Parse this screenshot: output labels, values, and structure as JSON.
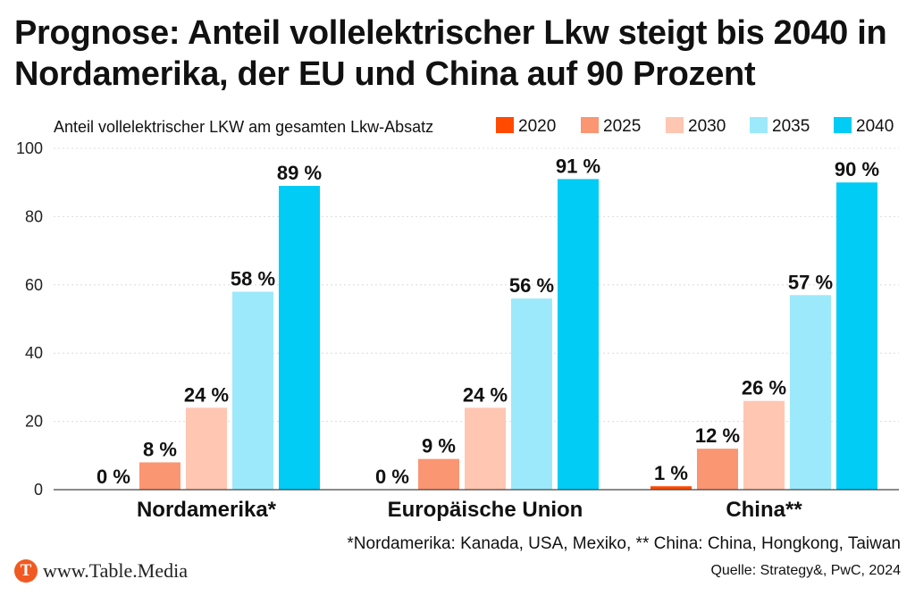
{
  "title": "Prognose: Anteil vollelektrischer Lkw steigt bis 2040 in Nordamerika, der EU und China auf 90 Prozent",
  "colors": {
    "2020": "#ff4a00",
    "2025": "#fa9672",
    "2030": "#ffc6b2",
    "2035": "#9ce9fb",
    "2040": "#00ccf5"
  },
  "chart_data": {
    "type": "bar",
    "subtitle": "Anteil vollelektrischer LKW am gesamten Lkw-Absatz",
    "categories": [
      "Nordamerika*",
      "Europäische Union",
      "China**"
    ],
    "series": [
      {
        "name": "2020",
        "values": [
          0,
          0,
          1
        ],
        "labels": [
          "0 %",
          "0 %",
          "1 %"
        ]
      },
      {
        "name": "2025",
        "values": [
          8,
          9,
          12
        ],
        "labels": [
          "8 %",
          "9 %",
          "12 %"
        ]
      },
      {
        "name": "2030",
        "values": [
          24,
          24,
          26
        ],
        "labels": [
          "24 %",
          "24 %",
          "26 %"
        ]
      },
      {
        "name": "2035",
        "values": [
          58,
          56,
          57
        ],
        "labels": [
          "58 %",
          "56 %",
          "57 %"
        ]
      },
      {
        "name": "2040",
        "values": [
          89,
          91,
          90
        ],
        "labels": [
          "89 %",
          "91 %",
          "90 %"
        ]
      }
    ],
    "ylim": [
      0,
      100
    ],
    "yticks": [
      "0",
      "20",
      "40",
      "60",
      "80",
      "100"
    ],
    "ytick_values": [
      0,
      20,
      40,
      60,
      80,
      100
    ],
    "grid": true,
    "legend": "top-right"
  },
  "footnote": "*Nordamerika: Kanada, USA, Mexiko, ** China: China, Hongkong, Taiwan",
  "brand": {
    "logo_letter": "T",
    "text": "www.Table.Media"
  },
  "source": "Quelle: Strategy&, PwC, 2024"
}
